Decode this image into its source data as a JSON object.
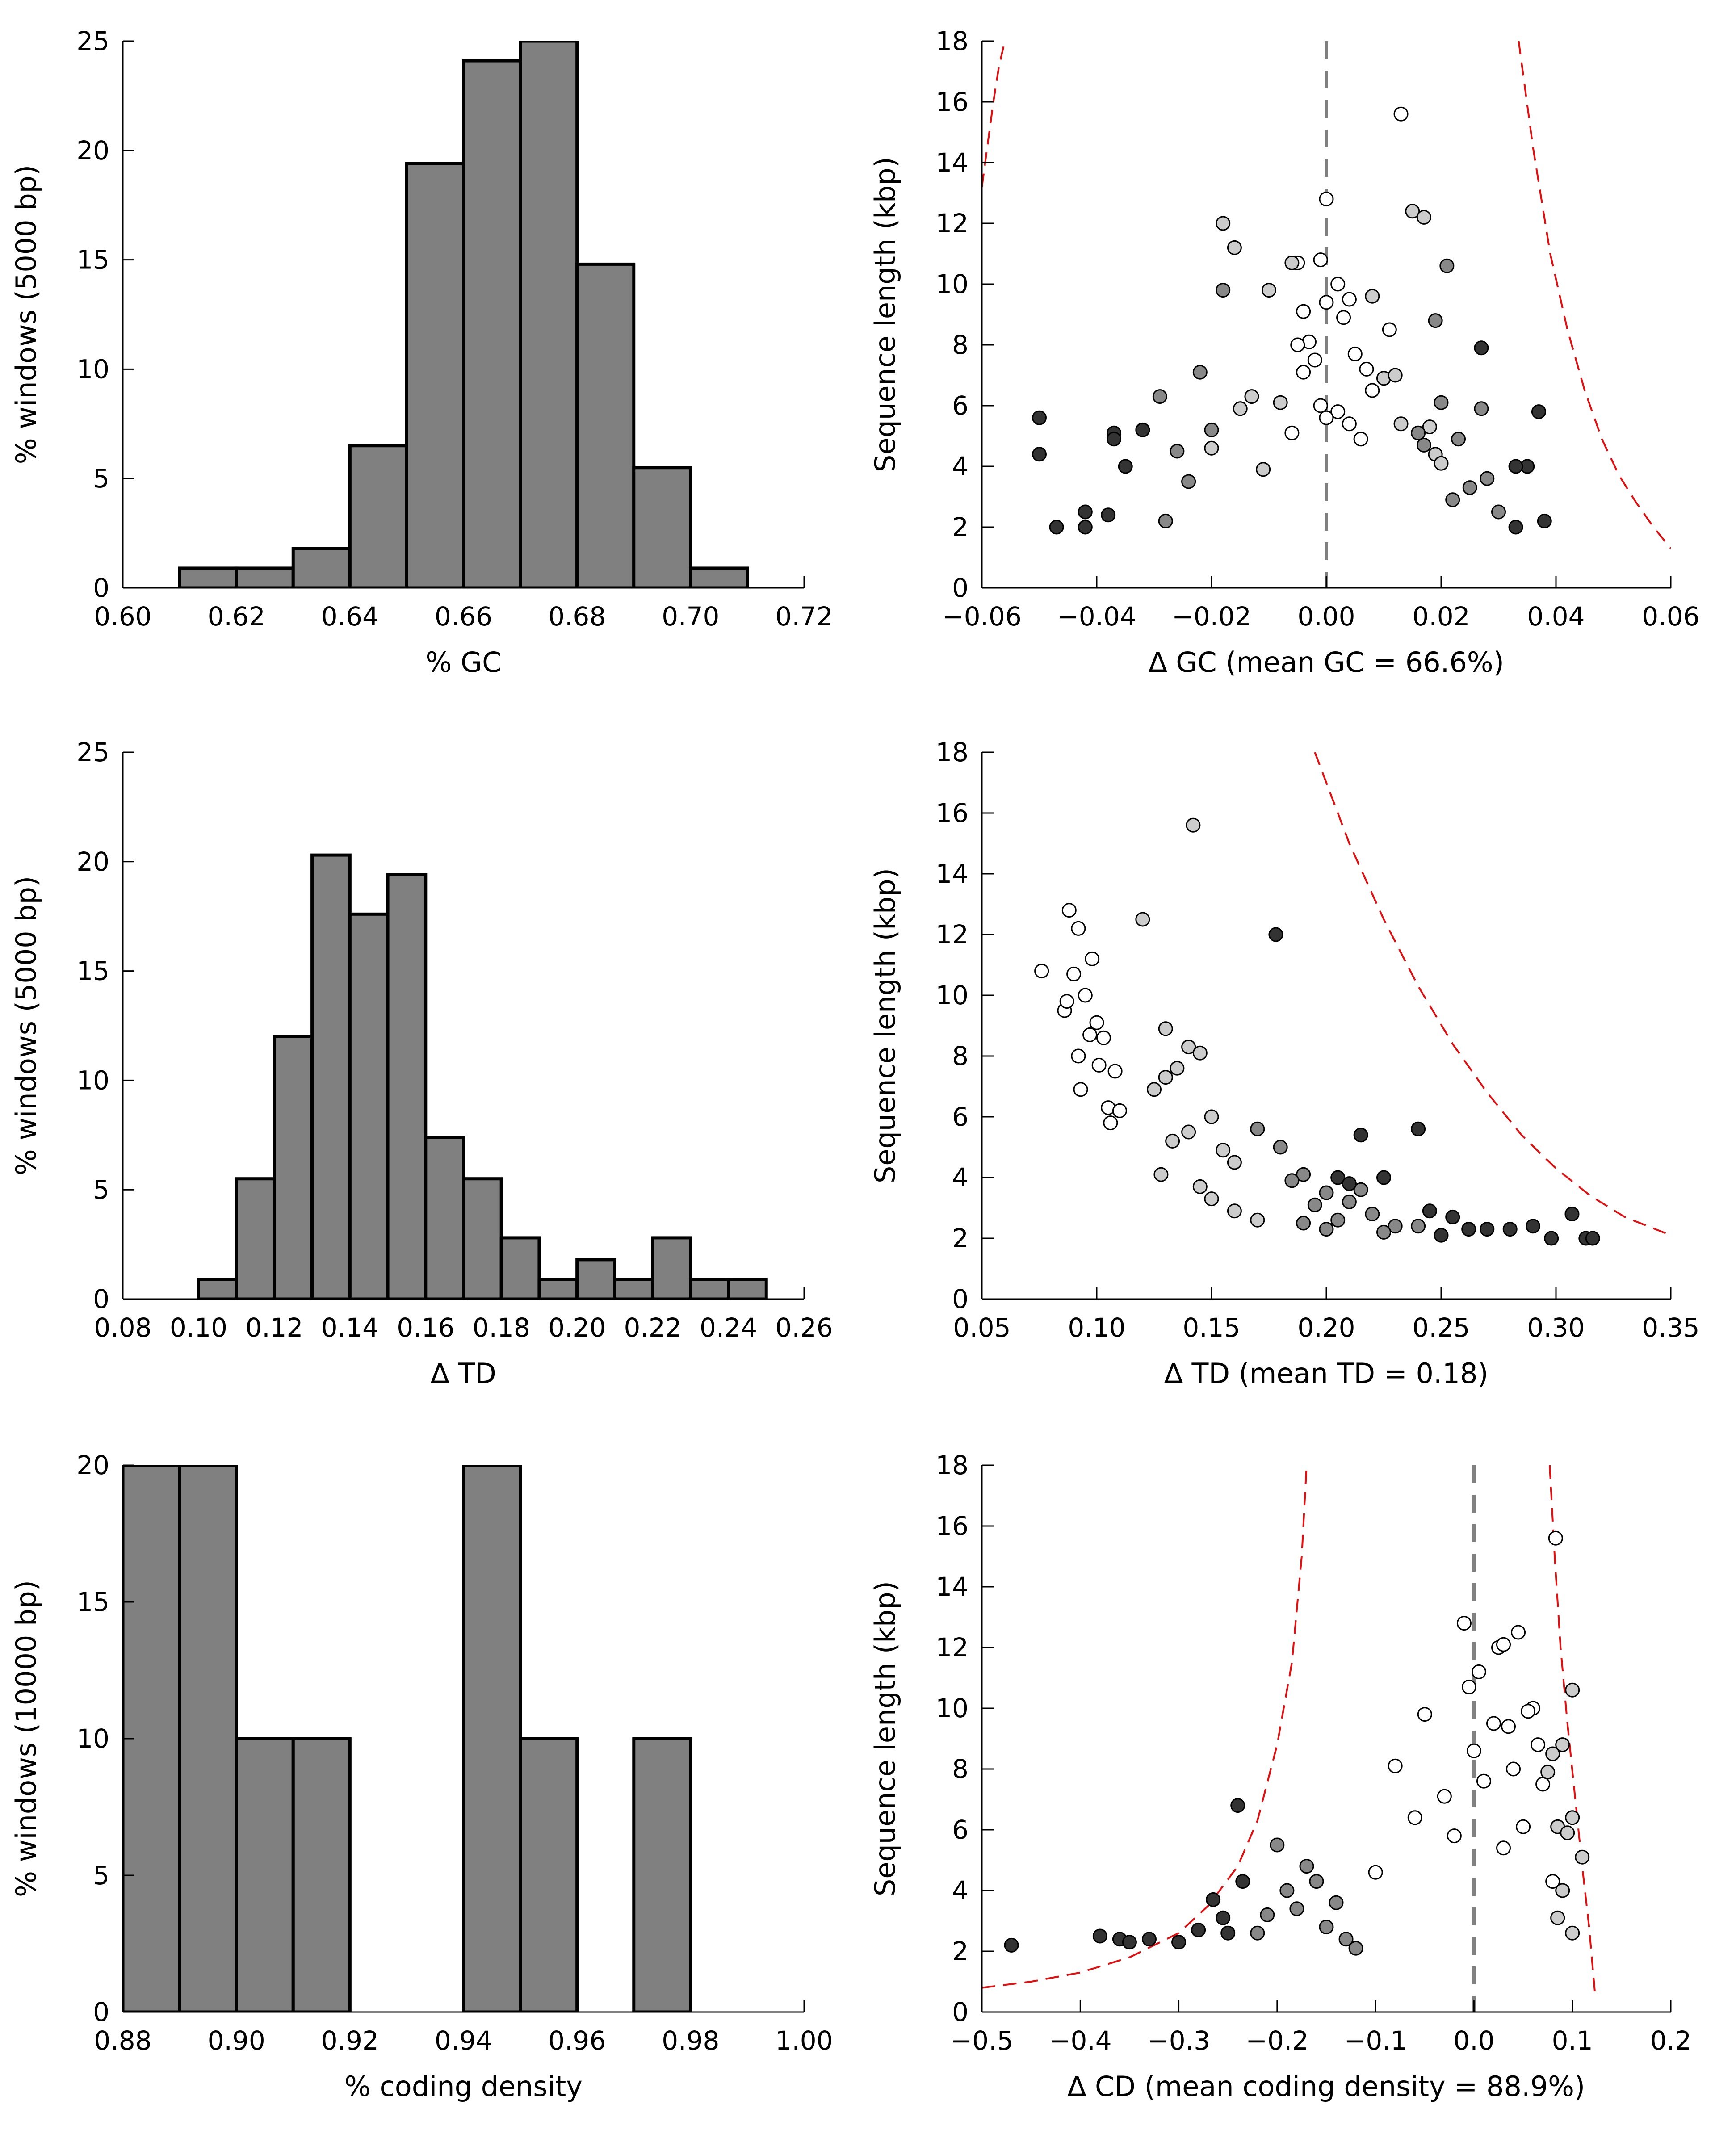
{
  "chart_data": [
    {
      "type": "bar",
      "panel": "gc-histogram",
      "xlabel": "% GC",
      "ylabel": "% windows (5000 bp)",
      "xlim": [
        0.6,
        0.72
      ],
      "ylim": [
        0,
        25
      ],
      "xticks": [
        "0.60",
        "0.62",
        "0.64",
        "0.66",
        "0.68",
        "0.70",
        "0.72"
      ],
      "yticks": [
        "0",
        "5",
        "10",
        "15",
        "20",
        "25"
      ],
      "bin_edges": [
        0.61,
        0.62,
        0.63,
        0.64,
        0.65,
        0.66,
        0.67,
        0.68,
        0.69,
        0.7,
        0.71
      ],
      "values": [
        0.9,
        0.9,
        1.8,
        6.5,
        19.4,
        24.1,
        25.0,
        14.8,
        5.5,
        0.9
      ],
      "bar_color": "#808080"
    },
    {
      "type": "scatter",
      "panel": "gc-scatter",
      "xlabel": "∆ GC (mean GC = 66.6%)",
      "ylabel": "Sequence length (kbp)",
      "xlim": [
        -0.06,
        0.06
      ],
      "ylim": [
        0,
        18
      ],
      "xticks": [
        "−0.06",
        "−0.04",
        "−0.02",
        "0.00",
        "0.02",
        "0.04",
        "0.06"
      ],
      "yticks": [
        "0",
        "2",
        "4",
        "6",
        "8",
        "10",
        "12",
        "14",
        "16",
        "18"
      ],
      "vline_x": 0,
      "bound_curves": [
        {
          "side": "left",
          "x": [
            -0.06,
            -0.059,
            -0.058,
            -0.057,
            -0.056
          ],
          "y": [
            13.2,
            14.6,
            16.0,
            17.2,
            18.0
          ]
        },
        {
          "side": "right",
          "x": [
            0.0335,
            0.036,
            0.039,
            0.042,
            0.045,
            0.048,
            0.051,
            0.054,
            0.057,
            0.06
          ],
          "y": [
            18.0,
            14.5,
            11.0,
            8.5,
            6.5,
            4.9,
            3.7,
            2.8,
            2.0,
            1.3
          ]
        }
      ],
      "series": [
        {
          "color": "#ffffff",
          "x": [
            0.013,
            0.0,
            -0.001,
            -0.005,
            0.002,
            -0.004,
            0.004,
            -0.003,
            0.011,
            0.0,
            0.003,
            -0.005,
            -0.002,
            0.005,
            0.007,
            0.01,
            -0.004,
            0.008,
            -0.001,
            0.002,
            0.004,
            -0.006,
            0.006,
            0.0
          ],
          "y": [
            15.6,
            12.8,
            10.8,
            10.7,
            10.0,
            9.1,
            9.5,
            8.1,
            8.5,
            9.4,
            8.9,
            8.0,
            7.5,
            7.7,
            7.2,
            6.9,
            7.1,
            6.5,
            6.0,
            5.8,
            5.4,
            5.1,
            4.9,
            5.6
          ]
        },
        {
          "color": "#cccccc",
          "x": [
            -0.018,
            -0.016,
            -0.01,
            -0.006,
            0.008,
            0.01,
            0.015,
            0.017,
            -0.013,
            0.012,
            -0.015,
            -0.008,
            0.013,
            0.018,
            -0.02,
            0.019,
            0.02,
            -0.011
          ],
          "y": [
            12.0,
            11.2,
            9.8,
            10.7,
            9.6,
            6.9,
            12.4,
            12.2,
            6.3,
            7.0,
            5.9,
            6.1,
            5.4,
            5.3,
            4.6,
            4.4,
            4.1,
            3.9
          ]
        },
        {
          "color": "#888888",
          "x": [
            -0.018,
            -0.022,
            -0.029,
            0.021,
            0.019,
            0.02,
            0.027,
            -0.02,
            0.023,
            -0.026,
            0.016,
            0.017,
            -0.024,
            0.028,
            0.03,
            -0.028,
            0.022,
            0.025
          ],
          "y": [
            9.8,
            7.1,
            6.3,
            10.6,
            8.8,
            6.1,
            5.9,
            5.2,
            4.9,
            4.5,
            5.1,
            4.7,
            3.5,
            3.6,
            2.5,
            2.2,
            2.9,
            3.3
          ]
        },
        {
          "color": "#333333",
          "x": [
            -0.05,
            -0.05,
            -0.037,
            -0.037,
            -0.032,
            -0.047,
            -0.042,
            -0.042,
            0.037,
            0.035,
            0.038,
            0.033,
            0.027,
            0.033,
            -0.035,
            -0.038
          ],
          "y": [
            5.6,
            4.4,
            5.1,
            4.9,
            5.2,
            2.0,
            2.5,
            2.0,
            5.8,
            4.0,
            2.2,
            2.0,
            7.9,
            4.0,
            4.0,
            2.4
          ]
        }
      ]
    },
    {
      "type": "bar",
      "panel": "td-histogram",
      "xlabel": "∆ TD",
      "ylabel": "% windows (5000 bp)",
      "xlim": [
        0.08,
        0.26
      ],
      "ylim": [
        0,
        25
      ],
      "xticks": [
        "0.08",
        "0.10",
        "0.12",
        "0.14",
        "0.16",
        "0.18",
        "0.20",
        "0.22",
        "0.24",
        "0.26"
      ],
      "yticks": [
        "0",
        "5",
        "10",
        "15",
        "20",
        "25"
      ],
      "bin_edges": [
        0.1,
        0.11,
        0.12,
        0.13,
        0.14,
        0.15,
        0.16,
        0.17,
        0.18,
        0.19,
        0.2,
        0.21,
        0.22,
        0.23,
        0.24,
        0.25
      ],
      "values": [
        0.9,
        5.5,
        12.0,
        20.3,
        17.6,
        19.4,
        7.4,
        5.5,
        2.8,
        0.9,
        1.8,
        0.9,
        2.8,
        0.9,
        0.9
      ],
      "bar_color": "#808080"
    },
    {
      "type": "scatter",
      "panel": "td-scatter",
      "xlabel": "∆ TD (mean TD = 0.18)",
      "ylabel": "Sequence length (kbp)",
      "xlim": [
        0.05,
        0.35
      ],
      "ylim": [
        0,
        18
      ],
      "xticks": [
        "0.05",
        "0.10",
        "0.15",
        "0.20",
        "0.25",
        "0.30",
        "0.35"
      ],
      "yticks": [
        "0",
        "2",
        "4",
        "6",
        "8",
        "10",
        "12",
        "14",
        "16",
        "18"
      ],
      "bound_curves": [
        {
          "side": "right",
          "x": [
            0.195,
            0.21,
            0.225,
            0.24,
            0.255,
            0.27,
            0.285,
            0.3,
            0.315,
            0.33,
            0.35
          ],
          "y": [
            18.0,
            15.0,
            12.5,
            10.3,
            8.4,
            6.8,
            5.4,
            4.3,
            3.4,
            2.7,
            2.1
          ]
        }
      ],
      "series": [
        {
          "color": "#ffffff",
          "x": [
            0.088,
            0.076,
            0.092,
            0.098,
            0.09,
            0.086,
            0.095,
            0.1,
            0.103,
            0.092,
            0.097,
            0.108,
            0.087,
            0.101,
            0.105,
            0.093,
            0.11,
            0.106
          ],
          "y": [
            12.8,
            10.8,
            12.2,
            11.2,
            10.7,
            9.5,
            10.0,
            9.1,
            8.6,
            8.0,
            8.7,
            7.5,
            9.8,
            7.7,
            6.3,
            6.9,
            6.2,
            5.8
          ]
        },
        {
          "color": "#cccccc",
          "x": [
            0.142,
            0.12,
            0.13,
            0.14,
            0.145,
            0.13,
            0.135,
            0.125,
            0.15,
            0.14,
            0.133,
            0.155,
            0.16,
            0.128,
            0.145,
            0.15,
            0.16,
            0.17
          ],
          "y": [
            15.6,
            12.5,
            8.9,
            8.3,
            8.1,
            7.3,
            7.6,
            6.9,
            6.0,
            5.5,
            5.2,
            4.9,
            4.5,
            4.1,
            3.7,
            3.3,
            2.9,
            2.6
          ]
        },
        {
          "color": "#888888",
          "x": [
            0.17,
            0.18,
            0.19,
            0.2,
            0.21,
            0.185,
            0.195,
            0.205,
            0.22,
            0.23,
            0.215,
            0.2,
            0.19,
            0.24,
            0.225
          ],
          "y": [
            5.6,
            5.0,
            4.1,
            3.5,
            3.2,
            3.9,
            3.1,
            2.6,
            2.8,
            2.4,
            3.6,
            2.3,
            2.5,
            2.4,
            2.2
          ]
        },
        {
          "color": "#333333",
          "x": [
            0.178,
            0.24,
            0.28,
            0.307,
            0.313,
            0.316,
            0.298,
            0.29,
            0.27,
            0.262,
            0.255,
            0.245,
            0.25,
            0.215,
            0.225,
            0.205,
            0.21
          ],
          "y": [
            12.0,
            5.6,
            2.3,
            2.8,
            2.0,
            2.0,
            2.0,
            2.4,
            2.3,
            2.3,
            2.7,
            2.9,
            2.1,
            5.4,
            4.0,
            4.0,
            3.8
          ]
        }
      ]
    },
    {
      "type": "bar",
      "panel": "cd-histogram",
      "xlabel": "% coding density",
      "ylabel": "% windows (10000 bp)",
      "xlim": [
        0.88,
        1.0
      ],
      "ylim": [
        0,
        20
      ],
      "xticks": [
        "0.88",
        "0.90",
        "0.92",
        "0.94",
        "0.96",
        "0.98",
        "1.00"
      ],
      "yticks": [
        "0",
        "5",
        "10",
        "15",
        "20"
      ],
      "bin_edges": [
        0.88,
        0.89,
        0.9,
        0.91,
        0.92,
        0.93,
        0.94,
        0.95,
        0.96,
        0.97,
        0.98
      ],
      "values": [
        20,
        20,
        10,
        10,
        0,
        0,
        20,
        10,
        0,
        10
      ],
      "bar_color": "#808080"
    },
    {
      "type": "scatter",
      "panel": "cd-scatter",
      "xlabel": "∆ CD (mean coding density = 88.9%)",
      "ylabel": "Sequence length (kbp)",
      "xlim": [
        -0.5,
        0.2
      ],
      "ylim": [
        0,
        18
      ],
      "xticks": [
        "−0.5",
        "−0.4",
        "−0.3",
        "−0.2",
        "−0.1",
        "0.0",
        "0.1",
        "0.2"
      ],
      "yticks": [
        "0",
        "2",
        "4",
        "6",
        "8",
        "10",
        "12",
        "14",
        "16",
        "18"
      ],
      "vline_x": 0,
      "bound_curves": [
        {
          "side": "left",
          "x": [
            -0.5,
            -0.45,
            -0.4,
            -0.35,
            -0.3,
            -0.27,
            -0.24,
            -0.22,
            -0.2,
            -0.185,
            -0.175,
            -0.17
          ],
          "y": [
            0.8,
            1.0,
            1.3,
            1.8,
            2.6,
            3.5,
            4.8,
            6.3,
            8.8,
            11.5,
            15.0,
            18.0
          ]
        },
        {
          "side": "right",
          "x": [
            0.077,
            0.082,
            0.088,
            0.095,
            0.103,
            0.11,
            0.117,
            0.123
          ],
          "y": [
            18.0,
            15.0,
            12.0,
            9.5,
            7.0,
            4.8,
            2.8,
            0.6
          ]
        }
      ],
      "series": [
        {
          "color": "#ffffff",
          "x": [
            0.083,
            -0.01,
            0.005,
            0.045,
            0.025,
            0.03,
            -0.005,
            0.06,
            0.055,
            -0.05,
            0.02,
            0.035,
            0.065,
            -0.08,
            0.0,
            0.04,
            0.01,
            -0.03,
            0.07,
            -0.06,
            0.05,
            -0.02,
            0.03,
            -0.1,
            0.08
          ],
          "y": [
            15.6,
            12.8,
            11.2,
            12.5,
            12.0,
            12.1,
            10.7,
            10.0,
            9.9,
            9.8,
            9.5,
            9.4,
            8.8,
            8.1,
            8.6,
            8.0,
            7.6,
            7.1,
            7.5,
            6.4,
            6.1,
            5.8,
            5.4,
            4.6,
            4.3
          ]
        },
        {
          "color": "#cccccc",
          "x": [
            0.1,
            0.09,
            0.08,
            0.075,
            0.1,
            0.085,
            0.095,
            0.11,
            0.09,
            0.085,
            0.1
          ],
          "y": [
            10.6,
            8.8,
            8.5,
            7.9,
            6.4,
            6.1,
            5.9,
            5.1,
            4.0,
            3.1,
            2.6
          ]
        },
        {
          "color": "#888888",
          "x": [
            -0.2,
            -0.19,
            -0.17,
            -0.18,
            -0.21,
            -0.22,
            -0.16,
            -0.14,
            -0.15,
            -0.13,
            -0.12
          ],
          "y": [
            5.5,
            4.0,
            4.8,
            3.4,
            3.2,
            2.6,
            4.3,
            3.6,
            2.8,
            2.4,
            2.1
          ]
        },
        {
          "color": "#333333",
          "x": [
            -0.47,
            -0.38,
            -0.36,
            -0.35,
            -0.33,
            -0.3,
            -0.28,
            -0.265,
            -0.24,
            -0.255,
            -0.235,
            -0.25
          ],
          "y": [
            2.2,
            2.5,
            2.4,
            2.3,
            2.4,
            2.3,
            2.7,
            3.7,
            6.8,
            3.1,
            4.3,
            2.6
          ]
        }
      ]
    }
  ]
}
